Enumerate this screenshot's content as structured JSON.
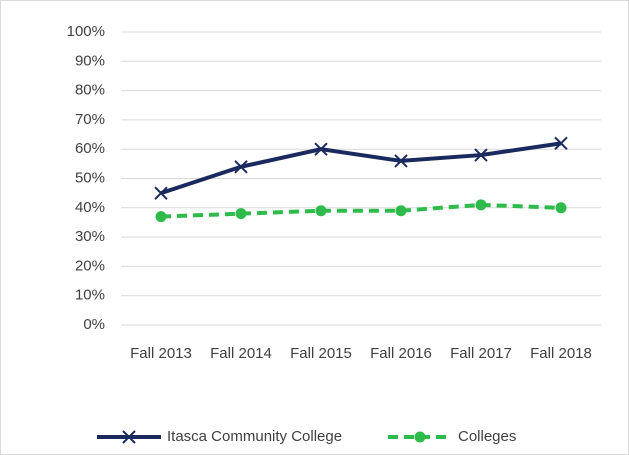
{
  "chart_data": {
    "type": "line",
    "categories": [
      "Fall 2013",
      "Fall 2014",
      "Fall 2015",
      "Fall 2016",
      "Fall 2017",
      "Fall 2018"
    ],
    "series": [
      {
        "name": "Itasca Community College",
        "color": "#1b2a5e",
        "marker": "x",
        "dashed": false,
        "values": [
          45,
          54,
          60,
          56,
          58,
          62
        ]
      },
      {
        "name": "Colleges",
        "color": "#2ebb4b",
        "marker": "circle",
        "dashed": true,
        "values": [
          37,
          38,
          39,
          39,
          41,
          40
        ]
      }
    ],
    "ylim": [
      0,
      100
    ],
    "yticks": [
      {
        "value": 0,
        "label": "0%"
      },
      {
        "value": 10,
        "label": "10%"
      },
      {
        "value": 20,
        "label": "20%"
      },
      {
        "value": 30,
        "label": "30%"
      },
      {
        "value": 40,
        "label": "40%"
      },
      {
        "value": 50,
        "label": "50%"
      },
      {
        "value": 60,
        "label": "60%"
      },
      {
        "value": 70,
        "label": "70%"
      },
      {
        "value": 80,
        "label": "80%"
      },
      {
        "value": 90,
        "label": "90%"
      },
      {
        "value": 100,
        "label": "100%"
      }
    ],
    "grid": true,
    "legend": "bottom"
  }
}
